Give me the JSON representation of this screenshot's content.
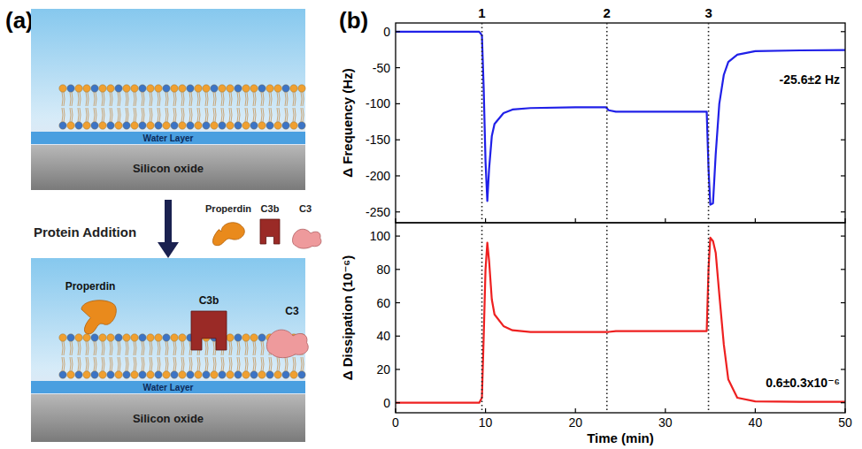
{
  "panels": {
    "a": "(a)",
    "b": "(b)"
  },
  "diagram": {
    "before": {
      "water_layer": "Water Layer",
      "substrate": "Silicon oxide"
    },
    "step": "Protein Addition",
    "legend": [
      "Properdin",
      "C3b",
      "C3"
    ],
    "after": {
      "proteins": [
        "Properdin",
        "C3b",
        "C3"
      ],
      "water_layer": "Water Layer",
      "substrate": "Silicon oxide"
    }
  },
  "chart_data": [
    {
      "type": "line",
      "y_label": "Δ Frequency (Hz)",
      "x": [
        0,
        5,
        9.3,
        9.6,
        9.8,
        10.0,
        10.2,
        10.4,
        10.7,
        11,
        12,
        13,
        15,
        20,
        23.4,
        23.7,
        24.5,
        30,
        34.6,
        34.8,
        35.0,
        35.3,
        35.6,
        36,
        36.5,
        37,
        38,
        40,
        45,
        50
      ],
      "series": [
        {
          "color": "#2020e8",
          "values": [
            0,
            0,
            0,
            -5,
            -80,
            -180,
            -235,
            -190,
            -145,
            -128,
            -113,
            -108,
            -106,
            -105,
            -105,
            -109,
            -111,
            -111,
            -111,
            -190,
            -240,
            -238,
            -170,
            -100,
            -60,
            -42,
            -32,
            -27,
            -26,
            -25.6
          ]
        }
      ],
      "xlim": [
        0,
        50
      ],
      "xticks": [
        0,
        10,
        20,
        30,
        40,
        50
      ],
      "ylim": [
        -265,
        12
      ],
      "yticks": [
        0,
        -50,
        -100,
        -150,
        -200,
        -250
      ],
      "tick_labels": "y",
      "events": [
        {
          "x": 9.6,
          "label": "1"
        },
        {
          "x": 23.5,
          "label": "2"
        },
        {
          "x": 34.8,
          "label": "3"
        }
      ],
      "annotation": "-25.6±2 Hz"
    },
    {
      "type": "line",
      "x_label": "Time (min)",
      "y_label": "Δ Dissipation (10⁻⁶)",
      "x": [
        0,
        5,
        9.3,
        9.6,
        9.8,
        10.0,
        10.2,
        10.4,
        10.7,
        11,
        12,
        13,
        15,
        20,
        23.4,
        23.7,
        24.5,
        30,
        34.6,
        34.8,
        35.0,
        35.3,
        35.6,
        36,
        36.5,
        37,
        38,
        40,
        45,
        50
      ],
      "series": [
        {
          "color": "#ee2020",
          "values": [
            0,
            0,
            0,
            3,
            40,
            80,
            96,
            85,
            62,
            53,
            46,
            43.5,
            42.5,
            42.5,
            42.5,
            42.5,
            43,
            43,
            43,
            80,
            99,
            97,
            90,
            65,
            35,
            14,
            3,
            0.8,
            0.6,
            0.6
          ]
        }
      ],
      "xlim": [
        0,
        50
      ],
      "xticks": [
        0,
        10,
        20,
        30,
        40,
        50
      ],
      "ylim": [
        -6,
        108
      ],
      "yticks": [
        0,
        20,
        40,
        60,
        80,
        100
      ],
      "annotation": "0.6±0.3x10⁻⁶"
    }
  ]
}
